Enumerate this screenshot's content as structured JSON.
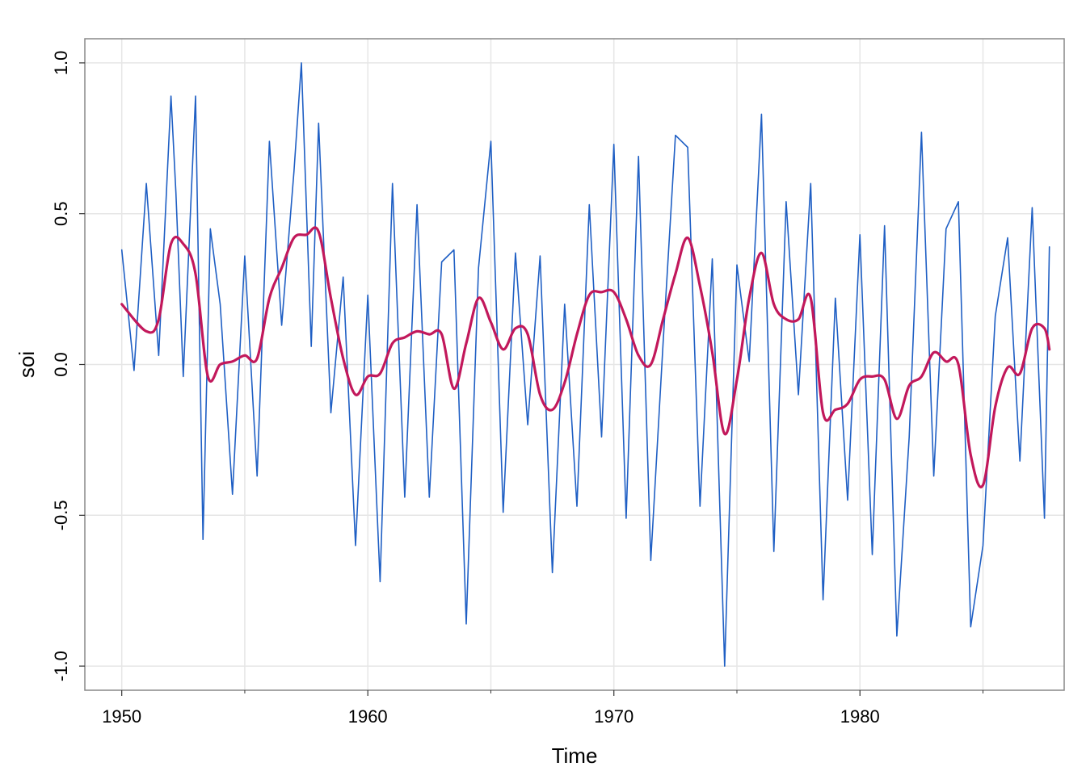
{
  "chart_data": {
    "type": "line",
    "title": "",
    "xlabel": "Time",
    "ylabel": "soi",
    "xlim": [
      1948.5,
      1988.3
    ],
    "ylim": [
      -1.08,
      1.08
    ],
    "grid": true,
    "legend": "none",
    "x_ticks": [
      1950,
      1960,
      1970,
      1980
    ],
    "x_tick_labels": [
      "1950",
      "1960",
      "1970",
      "1980"
    ],
    "x_minor_ticks": [
      1955,
      1965,
      1975,
      1985
    ],
    "y_ticks": [
      -1.0,
      -0.5,
      0.0,
      0.5,
      1.0
    ],
    "y_tick_labels": [
      "-1.0",
      "-0.5",
      "0.0",
      "0.5",
      "1.0"
    ],
    "colors": {
      "raw": "#1f5fc4",
      "smooth": "#c2185b",
      "grid": "#e6e6e6",
      "frame": "#888888"
    },
    "series": [
      {
        "id": "soi-raw",
        "x": [
          1950.0,
          1950.5,
          1951.0,
          1951.5,
          1952.0,
          1952.2,
          1952.5,
          1953.0,
          1953.3,
          1953.6,
          1954.0,
          1954.5,
          1955.0,
          1955.5,
          1956.0,
          1956.5,
          1957.0,
          1957.3,
          1957.7,
          1958.0,
          1958.5,
          1959.0,
          1959.5,
          1960.0,
          1960.5,
          1961.0,
          1961.5,
          1962.0,
          1962.5,
          1963.0,
          1963.5,
          1964.0,
          1964.5,
          1965.0,
          1965.5,
          1966.0,
          1966.5,
          1967.0,
          1967.5,
          1968.0,
          1968.5,
          1969.0,
          1969.5,
          1970.0,
          1970.5,
          1971.0,
          1971.5,
          1972.0,
          1972.5,
          1973.0,
          1973.5,
          1974.0,
          1974.5,
          1975.0,
          1975.5,
          1976.0,
          1976.5,
          1977.0,
          1977.5,
          1978.0,
          1978.5,
          1979.0,
          1979.5,
          1980.0,
          1980.5,
          1981.0,
          1981.5,
          1982.0,
          1982.5,
          1983.0,
          1983.5,
          1984.0,
          1984.5,
          1985.0,
          1985.5,
          1986.0,
          1986.5,
          1987.0,
          1987.5,
          1987.7
        ],
        "values": [
          0.38,
          -0.02,
          0.6,
          0.03,
          0.89,
          0.57,
          -0.04,
          0.89,
          -0.58,
          0.45,
          0.2,
          -0.43,
          0.36,
          -0.37,
          0.74,
          0.13,
          0.64,
          1.0,
          0.06,
          0.8,
          -0.16,
          0.29,
          -0.6,
          0.23,
          -0.72,
          0.6,
          -0.44,
          0.53,
          -0.44,
          0.34,
          0.38,
          -0.86,
          0.32,
          0.74,
          -0.49,
          0.37,
          -0.2,
          0.36,
          -0.69,
          0.2,
          -0.47,
          0.53,
          -0.24,
          0.73,
          -0.51,
          0.69,
          -0.65,
          0.07,
          0.76,
          0.72,
          -0.47,
          0.35,
          -1.0,
          0.33,
          0.01,
          0.83,
          -0.62,
          0.54,
          -0.1,
          0.6,
          -0.78,
          0.22,
          -0.45,
          0.43,
          -0.63,
          0.46,
          -0.9,
          -0.24,
          0.77,
          -0.37,
          0.45,
          0.54,
          -0.87,
          -0.6,
          0.16,
          0.42,
          -0.32,
          0.52,
          -0.51,
          0.39
        ]
      },
      {
        "id": "soi-smooth",
        "x": [
          1950.0,
          1951.0,
          1951.5,
          1952.0,
          1952.5,
          1953.0,
          1953.5,
          1954.0,
          1954.5,
          1955.0,
          1955.5,
          1956.0,
          1956.5,
          1957.0,
          1957.5,
          1958.0,
          1958.5,
          1959.0,
          1959.5,
          1960.0,
          1960.5,
          1961.0,
          1961.5,
          1962.0,
          1962.5,
          1963.0,
          1963.5,
          1964.0,
          1964.5,
          1965.0,
          1965.5,
          1966.0,
          1966.5,
          1967.0,
          1967.5,
          1968.0,
          1968.5,
          1969.0,
          1969.5,
          1970.0,
          1970.5,
          1971.0,
          1971.5,
          1972.0,
          1972.5,
          1973.0,
          1973.5,
          1974.0,
          1974.5,
          1975.0,
          1975.5,
          1976.0,
          1976.5,
          1977.0,
          1977.5,
          1978.0,
          1978.5,
          1979.0,
          1979.5,
          1980.0,
          1980.5,
          1981.0,
          1981.5,
          1982.0,
          1982.5,
          1983.0,
          1983.5,
          1984.0,
          1984.5,
          1985.0,
          1985.5,
          1986.0,
          1986.5,
          1987.0,
          1987.5,
          1987.7
        ],
        "values": [
          0.2,
          0.11,
          0.15,
          0.4,
          0.4,
          0.3,
          -0.04,
          0.0,
          0.01,
          0.03,
          0.02,
          0.22,
          0.32,
          0.42,
          0.43,
          0.44,
          0.22,
          0.02,
          -0.1,
          -0.04,
          -0.03,
          0.07,
          0.09,
          0.11,
          0.1,
          0.1,
          -0.08,
          0.07,
          0.22,
          0.14,
          0.05,
          0.12,
          0.1,
          -0.1,
          -0.15,
          -0.06,
          0.1,
          0.23,
          0.24,
          0.24,
          0.15,
          0.03,
          0.0,
          0.15,
          0.3,
          0.42,
          0.26,
          0.04,
          -0.23,
          -0.05,
          0.22,
          0.37,
          0.2,
          0.15,
          0.15,
          0.22,
          -0.16,
          -0.15,
          -0.13,
          -0.05,
          -0.04,
          -0.05,
          -0.18,
          -0.07,
          -0.04,
          0.04,
          0.01,
          0.0,
          -0.3,
          -0.4,
          -0.14,
          -0.01,
          -0.03,
          0.12,
          0.12,
          0.05
        ]
      }
    ]
  }
}
